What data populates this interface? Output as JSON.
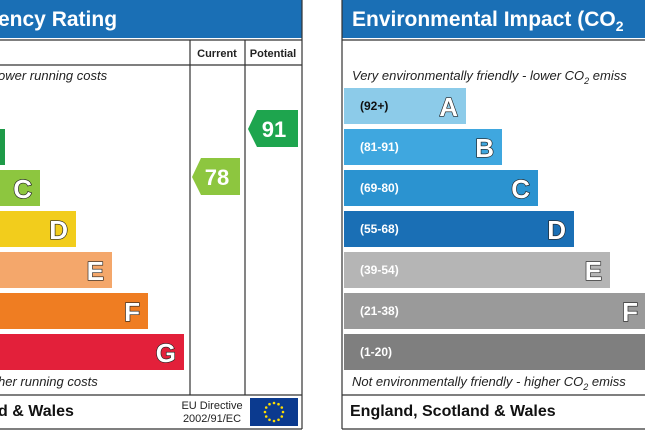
{
  "left": {
    "title": "ency Rating",
    "columns": [
      "Current",
      "Potential"
    ],
    "top_note": "ower running costs",
    "bands": [
      {
        "letter": "C"
      },
      {
        "letter": "D"
      },
      {
        "letter": "E"
      },
      {
        "letter": "F"
      },
      {
        "letter": "G"
      }
    ],
    "current": "78",
    "potential": "91",
    "bottom_note": "her running costs",
    "footer": "d & Wales",
    "directive": [
      "EU Directive",
      "2002/91/EC"
    ]
  },
  "right": {
    "title": [
      "Environmental Impact (CO",
      "2"
    ],
    "top_note": [
      "Very environmentally friendly - lower CO",
      "2",
      " emiss"
    ],
    "bands": [
      {
        "range": "(92+)",
        "letter": "A"
      },
      {
        "range": "(81-91)",
        "letter": "B"
      },
      {
        "range": "(69-80)",
        "letter": "C"
      },
      {
        "range": "(55-68)",
        "letter": "D"
      },
      {
        "range": "(39-54)",
        "letter": "E"
      },
      {
        "range": "(21-38)",
        "letter": "F"
      },
      {
        "range": "(1-20)",
        "letter": "G"
      }
    ],
    "bottom_note": [
      "Not environmentally friendly - higher CO",
      "2",
      " emiss"
    ],
    "footer": "England, Scotland & Wales"
  }
}
